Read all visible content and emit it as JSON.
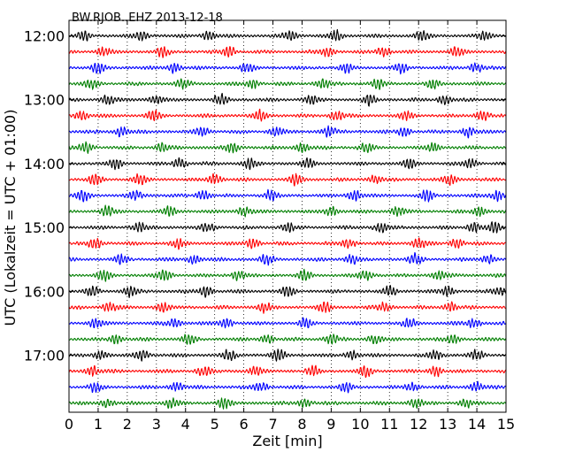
{
  "chart_data": {
    "type": "line",
    "title": "BW.RJOB..EHZ 2013-12-18",
    "xlabel": "Zeit  [min]",
    "ylabel": "UTC (Lokalzeit = UTC + 01:00)",
    "xlim": [
      0,
      15
    ],
    "x_ticks": [
      "0",
      "1",
      "2",
      "3",
      "4",
      "5",
      "6",
      "7",
      "8",
      "9",
      "10",
      "11",
      "12",
      "13",
      "14",
      "15"
    ],
    "y_tick_labels": [
      "12:00",
      "13:00",
      "14:00",
      "15:00",
      "16:00",
      "17:00"
    ],
    "y_tick_trace_index": [
      0,
      4,
      8,
      12,
      16,
      20
    ],
    "grid": "vertical dotted at every minute",
    "trace_colors": [
      "#000000",
      "#ff0000",
      "#0000ff",
      "#007f00"
    ],
    "series": [
      {
        "start": "12:00",
        "color": "#000000",
        "bursts": [
          0.5,
          2.5,
          4.8,
          7.6,
          9.2,
          12.1,
          14.3
        ]
      },
      {
        "start": "12:15",
        "color": "#ff0000",
        "bursts": [
          1.2,
          3.2,
          5.5,
          8.9,
          10.8,
          13.3
        ]
      },
      {
        "start": "12:30",
        "color": "#0000ff",
        "bursts": [
          1.0,
          3.6,
          6.1,
          9.5,
          11.4,
          14.0
        ]
      },
      {
        "start": "12:45",
        "color": "#007f00",
        "bursts": [
          0.8,
          3.9,
          6.3,
          8.7,
          10.6,
          12.5
        ]
      },
      {
        "start": "13:00",
        "color": "#000000",
        "bursts": [
          1.3,
          3.0,
          5.2,
          8.3,
          10.3,
          12.9
        ]
      },
      {
        "start": "13:15",
        "color": "#ff0000",
        "bursts": [
          0.4,
          2.9,
          6.6,
          9.2,
          11.6,
          14.2
        ]
      },
      {
        "start": "13:30",
        "color": "#0000ff",
        "bursts": [
          1.8,
          4.6,
          7.1,
          8.9,
          11.5,
          13.7
        ]
      },
      {
        "start": "13:45",
        "color": "#007f00",
        "bursts": [
          0.6,
          3.2,
          5.6,
          8.0,
          10.2,
          12.5
        ]
      },
      {
        "start": "14:00",
        "color": "#000000",
        "bursts": [
          1.6,
          3.8,
          6.2,
          8.2,
          11.7,
          13.8
        ]
      },
      {
        "start": "14:15",
        "color": "#ff0000",
        "bursts": [
          0.9,
          2.4,
          5.0,
          7.8,
          10.5,
          13.1
        ]
      },
      {
        "start": "14:30",
        "color": "#0000ff",
        "bursts": [
          0.5,
          2.3,
          4.6,
          6.9,
          9.8,
          12.3,
          14.7
        ]
      },
      {
        "start": "14:45",
        "color": "#007f00",
        "bursts": [
          1.3,
          3.5,
          6.0,
          9.0,
          11.3,
          14.1
        ]
      },
      {
        "start": "15:00",
        "color": "#000000",
        "bursts": [
          2.4,
          4.8,
          7.5,
          10.7,
          13.9,
          14.6
        ]
      },
      {
        "start": "15:15",
        "color": "#ff0000",
        "bursts": [
          0.9,
          3.7,
          6.3,
          9.6,
          12.0,
          13.3
        ]
      },
      {
        "start": "15:30",
        "color": "#0000ff",
        "bursts": [
          1.8,
          4.3,
          6.8,
          9.7,
          11.9,
          14.4
        ]
      },
      {
        "start": "15:45",
        "color": "#007f00",
        "bursts": [
          1.2,
          3.3,
          5.8,
          8.1,
          10.2,
          12.7
        ]
      },
      {
        "start": "16:00",
        "color": "#000000",
        "bursts": [
          0.8,
          2.1,
          4.7,
          7.5,
          11.0,
          13.0,
          14.8
        ]
      },
      {
        "start": "16:15",
        "color": "#ff0000",
        "bursts": [
          1.4,
          3.2,
          6.7,
          8.8,
          10.8,
          13.1
        ]
      },
      {
        "start": "16:30",
        "color": "#0000ff",
        "bursts": [
          0.9,
          3.6,
          5.4,
          8.1,
          11.7,
          13.9
        ]
      },
      {
        "start": "16:45",
        "color": "#007f00",
        "bursts": [
          1.6,
          4.1,
          6.8,
          9.0,
          10.5,
          13.2
        ]
      },
      {
        "start": "17:00",
        "color": "#000000",
        "bursts": [
          1.1,
          2.5,
          5.5,
          7.2,
          9.7,
          12.6,
          14.0
        ]
      },
      {
        "start": "17:15",
        "color": "#ff0000",
        "bursts": [
          0.8,
          4.6,
          6.4,
          8.4,
          10.2,
          12.6
        ]
      },
      {
        "start": "17:30",
        "color": "#0000ff",
        "bursts": [
          0.9,
          3.7,
          6.6,
          9.5,
          11.8,
          14.0
        ]
      },
      {
        "start": "17:45",
        "color": "#007f00",
        "bursts": [
          1.3,
          3.5,
          5.3,
          8.1,
          11.9,
          13.6
        ]
      }
    ]
  }
}
